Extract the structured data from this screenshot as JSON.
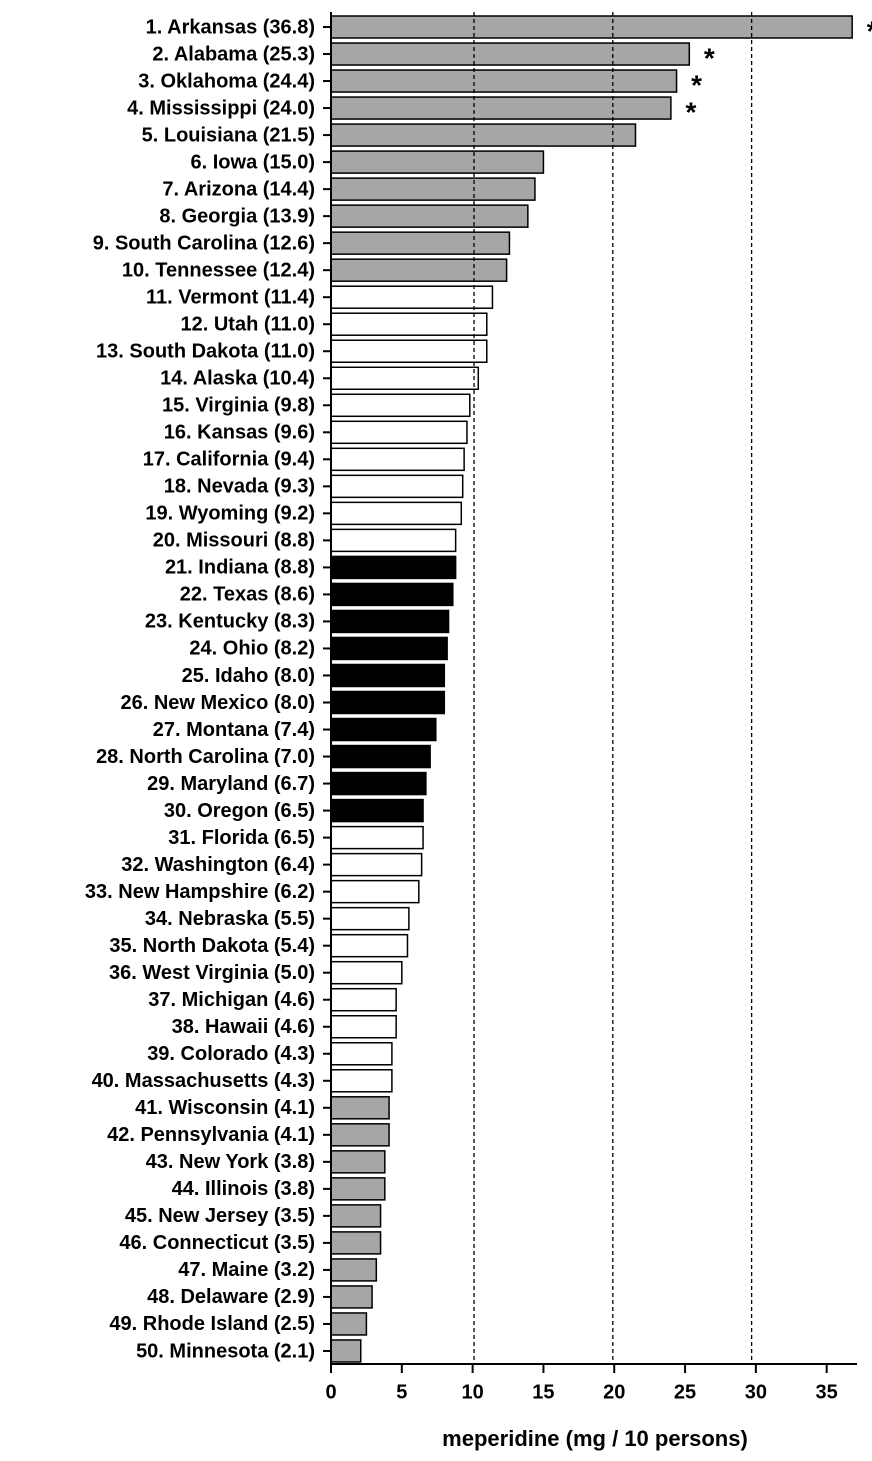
{
  "chart_data": {
    "type": "hbar",
    "x_label": "meperidine (mg / 10 persons)",
    "categories": [
      "1. Arkansas (36.8)",
      "2. Alabama (25.3)",
      "3. Oklahoma (24.4)",
      "4. Mississippi (24.0)",
      "5. Louisiana (21.5)",
      "6. Iowa (15.0)",
      "7. Arizona (14.4)",
      "8. Georgia (13.9)",
      "9. South Carolina (12.6)",
      "10. Tennessee (12.4)",
      "11. Vermont (11.4)",
      "12. Utah (11.0)",
      "13. South Dakota (11.0)",
      "14. Alaska (10.4)",
      "15. Virginia (9.8)",
      "16. Kansas (9.6)",
      "17. California (9.4)",
      "18. Nevada (9.3)",
      "19. Wyoming (9.2)",
      "20. Missouri (8.8)",
      "21. Indiana (8.8)",
      "22. Texas (8.6)",
      "23. Kentucky (8.3)",
      "24. Ohio (8.2)",
      "25. Idaho (8.0)",
      "26. New Mexico (8.0)",
      "27. Montana (7.4)",
      "28. North Carolina (7.0)",
      "29. Maryland (6.7)",
      "30. Oregon (6.5)",
      "31. Florida (6.5)",
      "32. Washington (6.4)",
      "33. New Hampshire (6.2)",
      "34. Nebraska (5.5)",
      "35. North Dakota (5.4)",
      "36. West Virginia (5.0)",
      "37. Michigan (4.6)",
      "38. Hawaii (4.6)",
      "39. Colorado (4.3)",
      "40. Massachusetts (4.3)",
      "41. Wisconsin (4.1)",
      "42. Pennsylvania (4.1)",
      "43. New York (3.8)",
      "44. Illinois (3.8)",
      "45. New Jersey (3.5)",
      "46. Connecticut (3.5)",
      "47. Maine (3.2)",
      "48. Delaware (2.9)",
      "49. Rhode Island (2.5)",
      "50. Minnesota (2.1)"
    ],
    "values": [
      36.8,
      25.3,
      24.4,
      24.0,
      21.5,
      15.0,
      14.4,
      13.9,
      12.6,
      12.4,
      11.4,
      11.0,
      11.0,
      10.4,
      9.8,
      9.6,
      9.4,
      9.3,
      9.2,
      8.8,
      8.8,
      8.6,
      8.3,
      8.2,
      8.0,
      8.0,
      7.4,
      7.0,
      6.7,
      6.5,
      6.5,
      6.4,
      6.2,
      5.5,
      5.4,
      5.0,
      4.6,
      4.6,
      4.3,
      4.3,
      4.1,
      4.1,
      3.8,
      3.8,
      3.5,
      3.5,
      3.2,
      2.9,
      2.5,
      2.1
    ],
    "colors": [
      "#a6a6a6",
      "#a6a6a6",
      "#a6a6a6",
      "#a6a6a6",
      "#a6a6a6",
      "#a6a6a6",
      "#a6a6a6",
      "#a6a6a6",
      "#a6a6a6",
      "#a6a6a6",
      "#ffffff",
      "#ffffff",
      "#ffffff",
      "#ffffff",
      "#ffffff",
      "#ffffff",
      "#ffffff",
      "#ffffff",
      "#ffffff",
      "#ffffff",
      "#000000",
      "#000000",
      "#000000",
      "#000000",
      "#000000",
      "#000000",
      "#000000",
      "#000000",
      "#000000",
      "#000000",
      "#ffffff",
      "#ffffff",
      "#ffffff",
      "#ffffff",
      "#ffffff",
      "#ffffff",
      "#ffffff",
      "#ffffff",
      "#ffffff",
      "#ffffff",
      "#a6a6a6",
      "#a6a6a6",
      "#a6a6a6",
      "#a6a6a6",
      "#a6a6a6",
      "#a6a6a6",
      "#a6a6a6",
      "#a6a6a6",
      "#a6a6a6",
      "#a6a6a6"
    ],
    "annotations": [
      "*",
      "*",
      "*",
      "*",
      null,
      null,
      null,
      null,
      null,
      null,
      null,
      null,
      null,
      null,
      null,
      null,
      null,
      null,
      null,
      null,
      null,
      null,
      null,
      null,
      null,
      null,
      null,
      null,
      null,
      null,
      null,
      null,
      null,
      null,
      null,
      null,
      null,
      null,
      null,
      null,
      null,
      null,
      null,
      null,
      null,
      null,
      null,
      null,
      null,
      null
    ],
    "reference_lines": [
      10.1,
      19.9,
      29.7
    ],
    "xlim": [
      0,
      37
    ],
    "xticks": [
      0,
      5,
      10,
      15,
      20,
      25,
      30,
      35
    ]
  }
}
